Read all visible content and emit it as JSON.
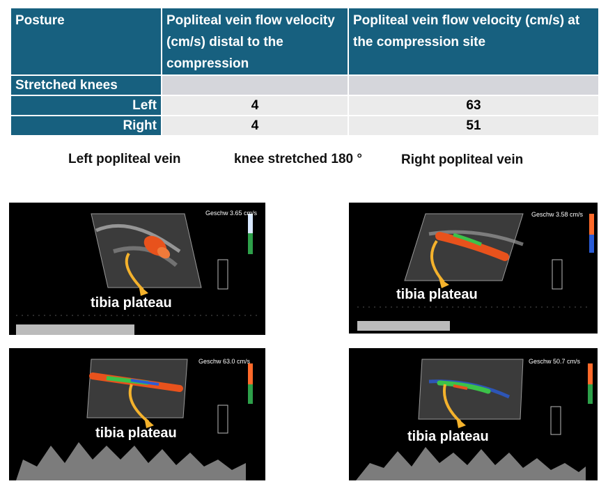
{
  "table": {
    "headers": [
      "Posture",
      "Popliteal vein flow velocity (cm/s) distal to the compression",
      "Popliteal vein flow velocity (cm/s) at the compression site"
    ],
    "group_label": "Stretched knees",
    "rows": [
      {
        "side": "Left",
        "distal": "4",
        "site": "63"
      },
      {
        "side": "Right",
        "distal": "4",
        "site": "51"
      }
    ]
  },
  "captions": {
    "left": "Left popliteal vein",
    "center": "knee stretched 180 °",
    "right": "Right popliteal vein"
  },
  "panels": [
    {
      "annotation": "tibia plateau",
      "velocity": "Geschw  3.65 cm/s"
    },
    {
      "annotation": "tibia plateau",
      "velocity": "Geschw  3.58 cm/s"
    },
    {
      "annotation": "tibia plateau",
      "velocity": "Geschw  63.0 cm/s"
    },
    {
      "annotation": "tibia plateau",
      "velocity": "Geschw  50.7 cm/s"
    }
  ],
  "colors": {
    "header_bg": "#17607f",
    "arrow": "#f4b22c",
    "flow_red": "#e8521c",
    "flow_green": "#3cc24a",
    "flow_blue": "#2b5cd6"
  }
}
